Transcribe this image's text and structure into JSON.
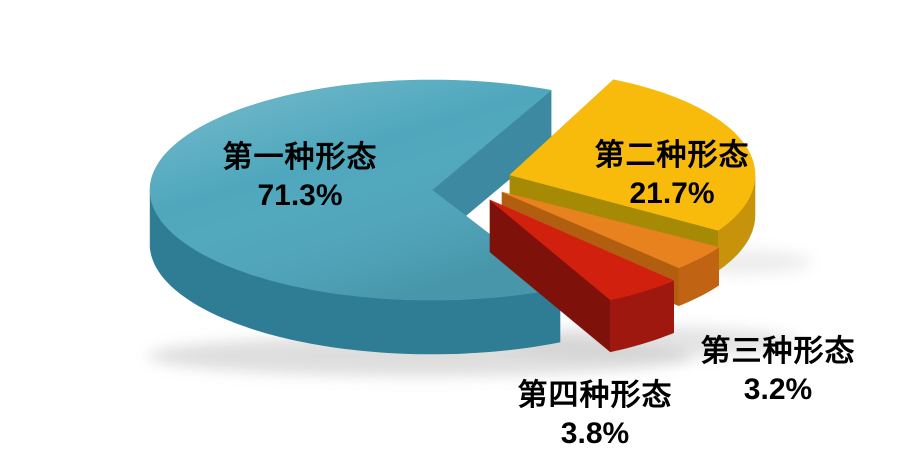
{
  "background_color": "#ffffff",
  "text_color": "#000000",
  "chart_data": {
    "type": "pie",
    "style": "3d-exploded",
    "unit": "%",
    "total": 100,
    "labels_on_chart": true,
    "slices": [
      {
        "label": "第一种形态",
        "value": 71.3,
        "display": "71.3%",
        "top_color": "#4FA7BD",
        "side_color": "#2E7D95",
        "cut_color": "#3C89A1"
      },
      {
        "label": "第二种形态",
        "value": 21.7,
        "display": "21.7%",
        "top_color": "#F8BB0C",
        "side_color": "#C6930B",
        "cut_color": "#A68A06"
      },
      {
        "label": "第三种形态",
        "value": 3.2,
        "display": "3.2%",
        "top_color": "#E8821E",
        "side_color": "#C06413",
        "cut_color": "#B25E10"
      },
      {
        "label": "第四种形态",
        "value": 3.8,
        "display": "3.8%",
        "top_color": "#D2200F",
        "side_color": "#9E1810",
        "cut_color": "#7E120B"
      }
    ]
  }
}
